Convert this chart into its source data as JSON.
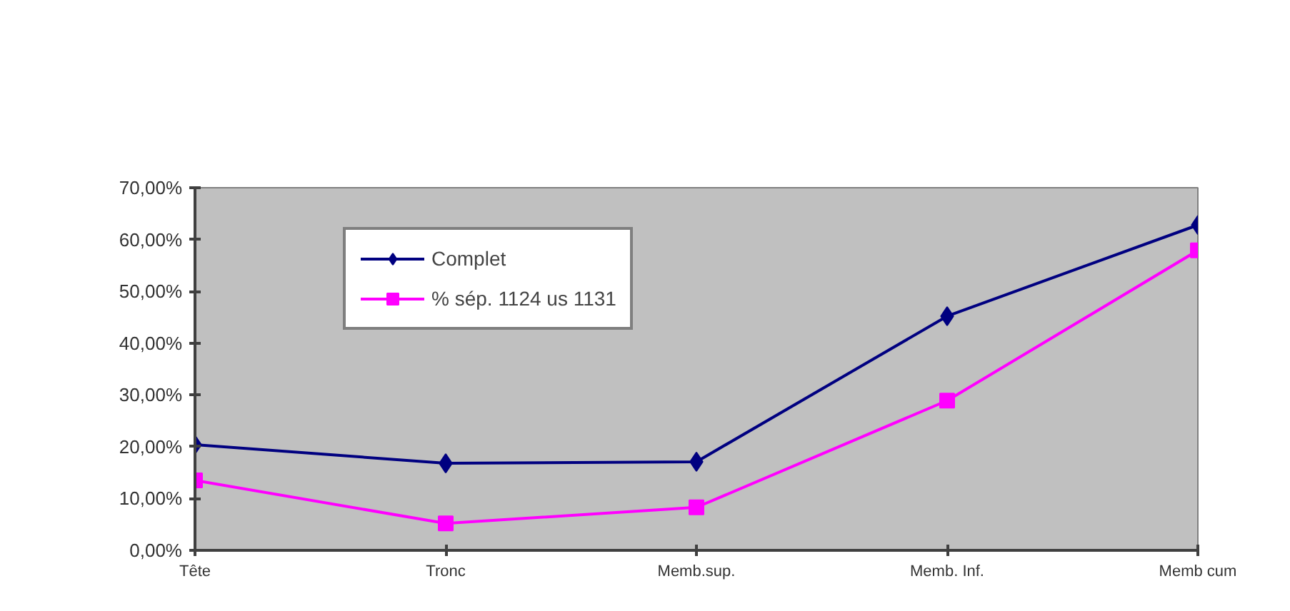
{
  "chart_data": {
    "type": "line",
    "categories": [
      "Tête",
      "Tronc",
      "Memb.sup.",
      "Memb. Inf.",
      "Memb cum"
    ],
    "series": [
      {
        "name": "Complet",
        "color": "#000080",
        "marker": "diamond",
        "values": [
          20.4,
          16.8,
          17.1,
          45.2,
          62.8
        ]
      },
      {
        "name": "% sép. 1124 us 1131",
        "color": "#ff00ff",
        "marker": "square",
        "values": [
          13.5,
          5.2,
          8.3,
          28.9,
          57.9
        ]
      }
    ],
    "ylim": [
      0,
      70
    ],
    "yticks": [
      {
        "value": 0,
        "label": "0,00%"
      },
      {
        "value": 10,
        "label": "10,00%"
      },
      {
        "value": 20,
        "label": "20,00%"
      },
      {
        "value": 30,
        "label": "30,00%"
      },
      {
        "value": 40,
        "label": "40,00%"
      },
      {
        "value": 50,
        "label": "50,00%"
      },
      {
        "value": 60,
        "label": "60,00%"
      },
      {
        "value": 70,
        "label": "70,00%"
      }
    ],
    "grid": false,
    "legend": "top left",
    "line_style": "solid"
  }
}
